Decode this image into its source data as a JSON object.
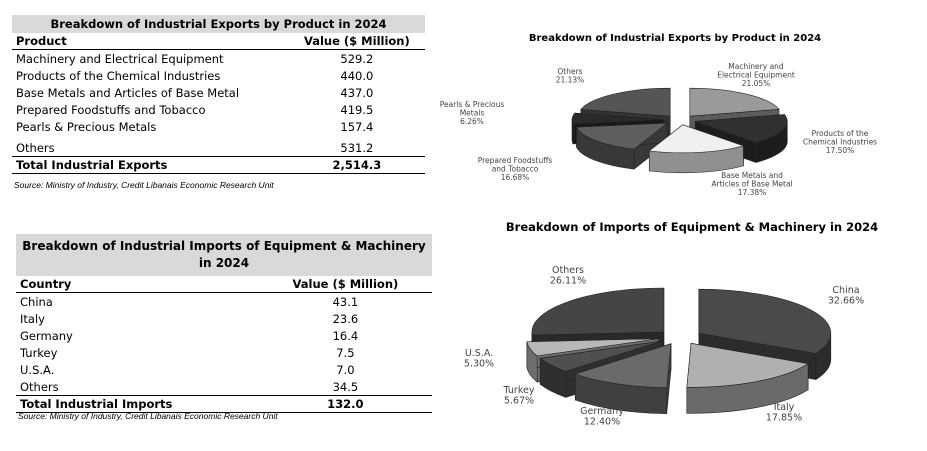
{
  "exports_table": {
    "title": "Breakdown of Industrial Exports by Product in 2024",
    "col_product": "Product",
    "col_value": "Value ($ Million)",
    "rows": [
      {
        "name": "Machinery and Electrical Equipment",
        "value": "529.2"
      },
      {
        "name": "Products of the Chemical Industries",
        "value": "440.0"
      },
      {
        "name": "Base Metals and Articles of Base Metal",
        "value": "437.0"
      },
      {
        "name": "Prepared Foodstuffs and Tobacco",
        "value": "419.5"
      },
      {
        "name": "Pearls & Precious Metals",
        "value": "157.4"
      },
      {
        "name": "Others",
        "value": "531.2"
      }
    ],
    "total_label": "Total Industrial Exports",
    "total_value": "2,514.3",
    "source": "Source: Ministry of Industry, Credit Libanais Economic Research Unit"
  },
  "imports_table": {
    "title": "Breakdown of Industrial Imports of Equipment & Machinery in 2024",
    "col_country": "Country",
    "col_value": "Value ($ Million)",
    "rows": [
      {
        "name": "China",
        "value": "43.1"
      },
      {
        "name": "Italy",
        "value": "23.6"
      },
      {
        "name": "Germany",
        "value": "16.4"
      },
      {
        "name": "Turkey",
        "value": "7.5"
      },
      {
        "name": "U.S.A.",
        "value": "7.0"
      },
      {
        "name": "Others",
        "value": "34.5"
      }
    ],
    "total_label": "Total Industrial Imports",
    "total_value": "132.0",
    "source": "Source: Ministry of Industry, Credit Libanais Economic Research Unit"
  },
  "chart_data": [
    {
      "type": "pie",
      "title": "Breakdown of Industrial Exports by Product in 2024",
      "slices": [
        {
          "label": "Machinery and Electrical Equipment",
          "pct": "21.05%",
          "value": 21.05,
          "color": "#9a9a9a"
        },
        {
          "label": "Products of the Chemical Industries",
          "pct": "17.50%",
          "value": 17.5,
          "color": "#303030"
        },
        {
          "label": "Base Metals and Articles of Base Metal",
          "pct": "17.38%",
          "value": 17.38,
          "color": "#f0f0f0"
        },
        {
          "label": "Prepared Foodstuffs and Tobacco",
          "pct": "16.68%",
          "value": 16.68,
          "color": "#5e5e5e"
        },
        {
          "label": "Pearls & Precious Metals",
          "pct": "6.26%",
          "value": 6.26,
          "color": "#2a2a2a"
        },
        {
          "label": "Others",
          "pct": "21.13%",
          "value": 21.13,
          "color": "#555555"
        }
      ]
    },
    {
      "type": "pie",
      "title": "Breakdown of Imports of Equipment & Machinery in 2024",
      "slices": [
        {
          "label": "China",
          "pct": "32.66%",
          "value": 32.66,
          "color": "#4a4a4a"
        },
        {
          "label": "Italy",
          "pct": "17.85%",
          "value": 17.85,
          "color": "#b0b0b0"
        },
        {
          "label": "Germany",
          "pct": "12.40%",
          "value": 12.4,
          "color": "#6a6a6a"
        },
        {
          "label": "Turkey",
          "pct": "5.67%",
          "value": 5.67,
          "color": "#4f4f4f"
        },
        {
          "label": "U.S.A.",
          "pct": "5.30%",
          "value": 5.3,
          "color": "#b8b8b8"
        },
        {
          "label": "Others",
          "pct": "26.11%",
          "value": 26.11,
          "color": "#454545"
        }
      ]
    }
  ]
}
